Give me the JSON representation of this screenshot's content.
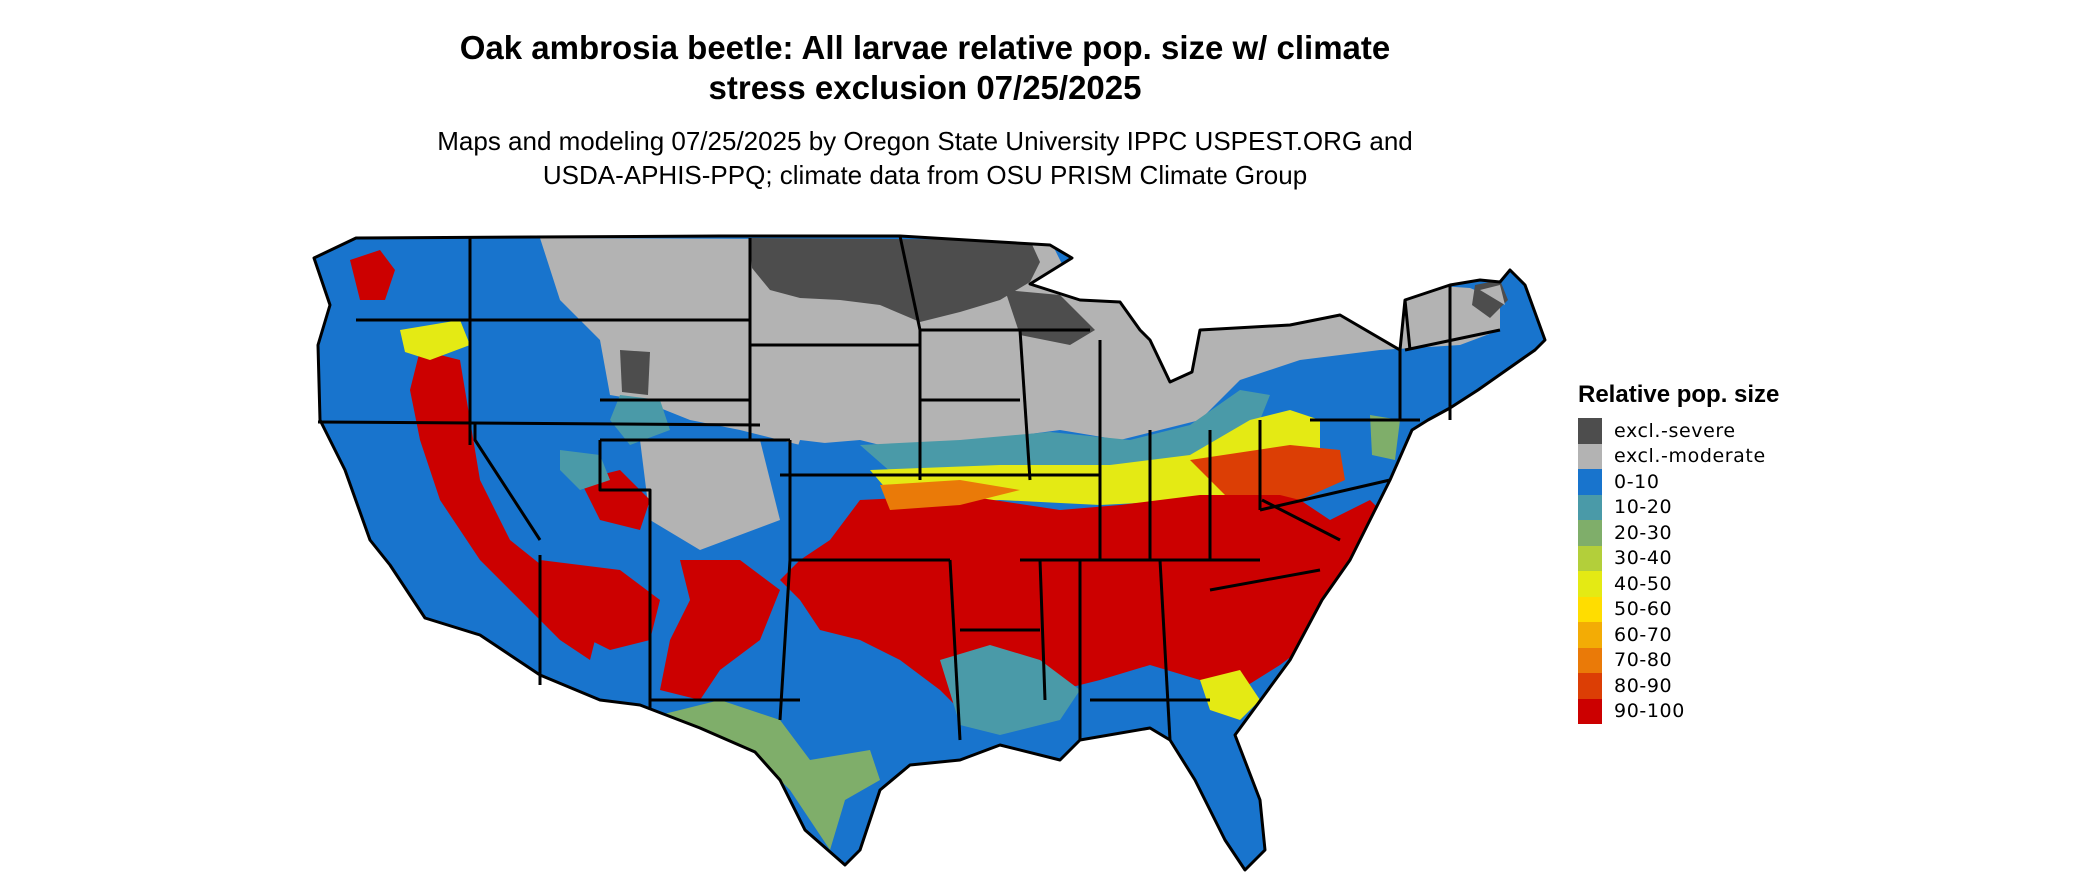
{
  "title_lines": [
    "Oak ambrosia beetle: All larvae relative pop. size w/ climate",
    "stress exclusion 07/25/2025"
  ],
  "subtitle_lines": [
    "Maps and modeling 07/25/2025 by Oregon State University IPPC USPEST.ORG and",
    "USDA-APHIS-PPQ; climate data from OSU PRISM Climate Group"
  ],
  "legend": {
    "title": "Relative pop. size",
    "items": [
      {
        "label": "excl.-severe",
        "color": "#4d4d4d"
      },
      {
        "label": "excl.-moderate",
        "color": "#b3b3b3"
      },
      {
        "label": "0-10",
        "color": "#1874cd"
      },
      {
        "label": "10-20",
        "color": "#4a9aa8"
      },
      {
        "label": "20-30",
        "color": "#7fae6a"
      },
      {
        "label": "30-40",
        "color": "#b3cf3a"
      },
      {
        "label": "40-50",
        "color": "#e4ea14"
      },
      {
        "label": "50-60",
        "color": "#ffdd00"
      },
      {
        "label": "60-70",
        "color": "#f3ac05"
      },
      {
        "label": "70-80",
        "color": "#ea7a08"
      },
      {
        "label": "80-90",
        "color": "#dc3e05"
      },
      {
        "label": "90-100",
        "color": "#cc0000"
      }
    ]
  }
}
